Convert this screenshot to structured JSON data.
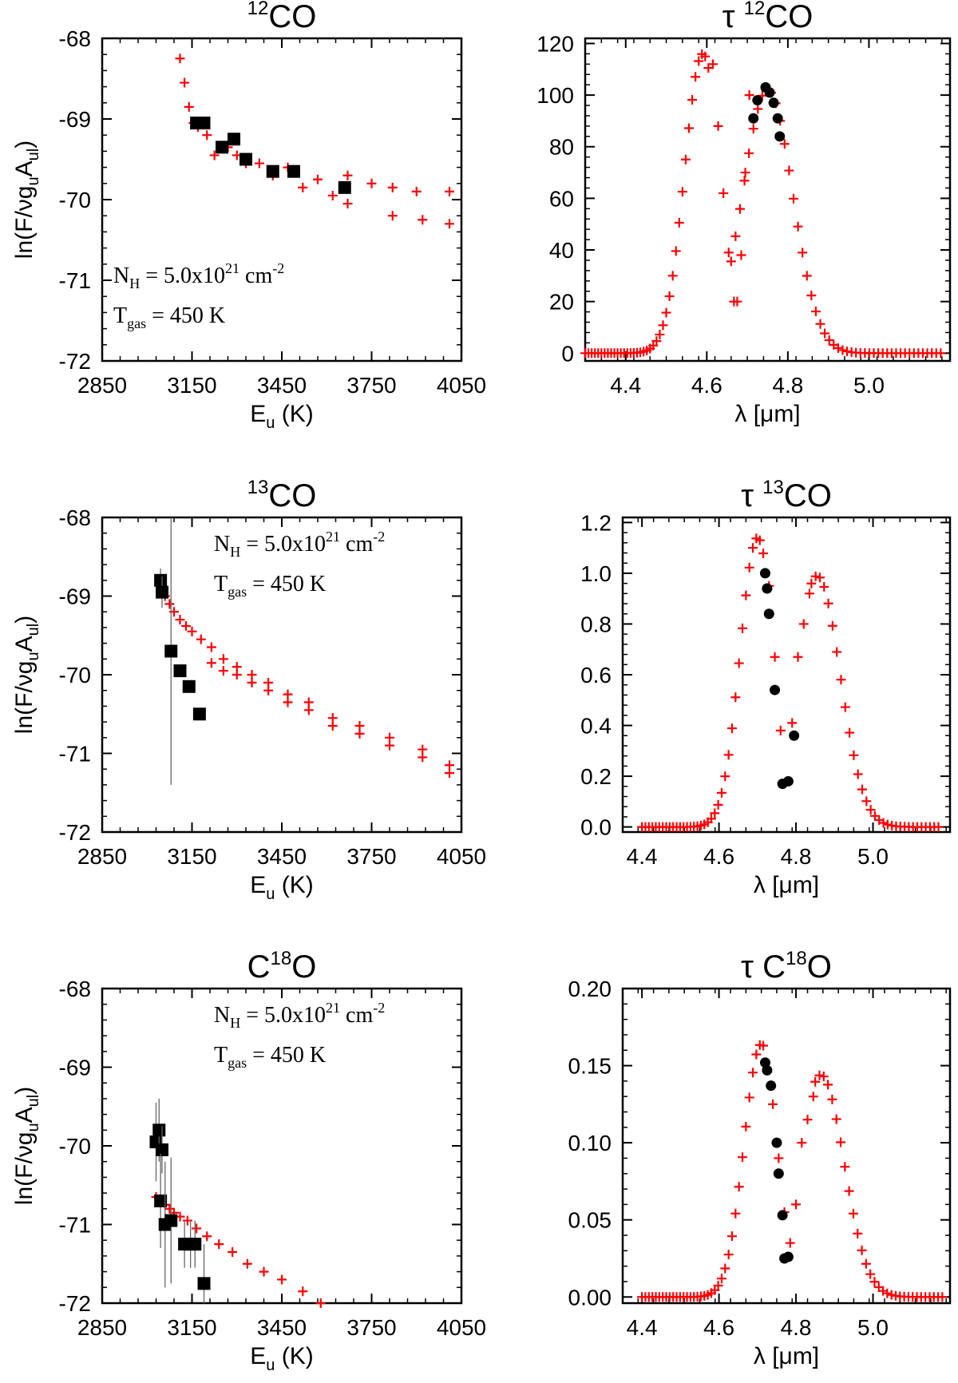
{
  "chart_data": [
    {
      "id": "rot_12co",
      "type": "scatter",
      "title": {
        "pre": "",
        "sup": "12",
        "post": "CO"
      },
      "xlabel": {
        "base": "E",
        "sub": "u",
        "post": " (K)"
      },
      "ylabel": {
        "pre": "ln(F/νg",
        "sub1": "u",
        "mid": "A",
        "sub2": "ul",
        "post": ")"
      },
      "xlim": [
        2850,
        4050
      ],
      "ylim": [
        -72,
        -68
      ],
      "xticks": [
        "2850",
        "3150",
        "3450",
        "3750",
        "4050"
      ],
      "yticks": [
        "-68",
        "-69",
        "-70",
        "-71",
        "-72"
      ],
      "annotation": {
        "n_label": "N",
        "n_sub": "H",
        "n_value": "= 5.0x10",
        "n_exp": "21",
        "n_unit": " cm",
        "n_unit_exp": "-2",
        "t_label": "T",
        "t_sub": "gas",
        "t_value": "= 450 K",
        "position": "lower-left"
      },
      "series": [
        {
          "name": "model",
          "marker": "plus",
          "color": "#ff0000",
          "x": [
            3110,
            3125,
            3140,
            3155,
            3170,
            3200,
            3225,
            3270,
            3300,
            3330,
            3375,
            3420,
            3470,
            3520,
            3570,
            3620,
            3670,
            3750,
            3820,
            3900,
            4010
          ],
          "y": [
            -68.25,
            -68.55,
            -68.85,
            -69.05,
            -69.1,
            -69.2,
            -69.45,
            -69.35,
            -69.45,
            -69.55,
            -69.55,
            -69.7,
            -69.6,
            -69.85,
            -69.75,
            -69.95,
            -69.7,
            -69.8,
            -69.85,
            -69.9,
            -69.9
          ]
        },
        {
          "name": "model-2",
          "marker": "plus",
          "color": "#ff0000",
          "x": [
            3670,
            3820,
            3920,
            4010
          ],
          "y": [
            -70.05,
            -70.2,
            -70.25,
            -70.3
          ]
        },
        {
          "name": "observed",
          "marker": "square",
          "color": "#000000",
          "x": [
            3165,
            3190,
            3250,
            3290,
            3330,
            3420,
            3490,
            3660
          ],
          "y": [
            -69.05,
            -69.05,
            -69.35,
            -69.25,
            -69.5,
            -69.65,
            -69.65,
            -69.85
          ],
          "err": [
            0,
            0,
            0,
            0,
            0,
            0,
            0,
            0
          ]
        }
      ]
    },
    {
      "id": "tau_12co",
      "type": "scatter",
      "title": {
        "pre": "τ ",
        "sup": "12",
        "post": "CO"
      },
      "xlabel": {
        "base": "λ [μm]",
        "sub": "",
        "post": ""
      },
      "ylabel": null,
      "xlim": [
        4.3,
        5.2
      ],
      "ylim": [
        -3,
        122
      ],
      "xticks": [
        "4.4",
        "4.6",
        "4.8",
        "5.0"
      ],
      "yticks": [
        "120",
        "100",
        "80",
        "60",
        "40",
        "20",
        "0"
      ],
      "series": [
        {
          "name": "model-P",
          "marker": "plus",
          "color": "#ff0000",
          "profile": {
            "center": 4.75,
            "peak": 102,
            "sigma": 0.062,
            "from": 4.66,
            "to": 5.18,
            "step": 0.011
          }
        },
        {
          "name": "model-R",
          "marker": "plus",
          "color": "#ff0000",
          "profile": {
            "center": 4.59,
            "peak": 116,
            "sigma": 0.045,
            "from": 4.3,
            "to": 4.605,
            "step": 0.008
          }
        },
        {
          "name": "model-R-tail",
          "marker": "plus",
          "color": "#ff0000",
          "x": [
            4.615,
            4.628,
            4.641,
            4.654,
            4.667
          ],
          "y": [
            112,
            88,
            62,
            39,
            20
          ]
        },
        {
          "name": "model-mid",
          "marker": "plus",
          "color": "#ff0000",
          "x": [
            4.675,
            4.685,
            4.695,
            4.705
          ],
          "y": [
            20,
            38,
            70,
            100
          ]
        },
        {
          "name": "observed",
          "marker": "circle",
          "color": "#000000",
          "x": [
            4.715,
            4.725,
            4.745,
            4.755,
            4.765,
            4.775,
            4.78
          ],
          "y": [
            91,
            98,
            103,
            101,
            97,
            91,
            84
          ]
        }
      ]
    },
    {
      "id": "rot_13co",
      "type": "scatter",
      "title": {
        "pre": "",
        "sup": "13",
        "post": "CO"
      },
      "xlabel": {
        "base": "E",
        "sub": "u",
        "post": " (K)"
      },
      "ylabel": {
        "pre": "ln(F/νg",
        "sub1": "u",
        "mid": "A",
        "sub2": "ul",
        "post": ")"
      },
      "xlim": [
        2850,
        4050
      ],
      "ylim": [
        -72,
        -68
      ],
      "xticks": [
        "2850",
        "3150",
        "3450",
        "3750",
        "4050"
      ],
      "yticks": [
        "-68",
        "-69",
        "-70",
        "-71",
        "-72"
      ],
      "annotation": {
        "n_label": "N",
        "n_sub": "H",
        "n_value": "= 5.0x10",
        "n_exp": "21",
        "n_unit": " cm",
        "n_unit_exp": "-2",
        "t_label": "T",
        "t_sub": "gas",
        "t_value": "= 450 K",
        "position": "upper-right"
      },
      "series": [
        {
          "name": "model",
          "marker": "plus",
          "color": "#ff0000",
          "x": [
            3040,
            3060,
            3075,
            3090,
            3110,
            3130,
            3150,
            3180,
            3215,
            3255,
            3300,
            3350,
            3405,
            3470,
            3540,
            3620,
            3710,
            3810,
            3920,
            4010
          ],
          "y": [
            -68.85,
            -69.0,
            -69.1,
            -69.2,
            -69.3,
            -69.38,
            -69.45,
            -69.55,
            -69.65,
            -69.8,
            -69.9,
            -70.0,
            -70.1,
            -70.25,
            -70.35,
            -70.55,
            -70.65,
            -70.8,
            -70.95,
            -71.15
          ]
        },
        {
          "name": "model-2",
          "marker": "plus",
          "color": "#ff0000",
          "x": [
            3215,
            3255,
            3300,
            3350,
            3405,
            3470,
            3540,
            3620,
            3710,
            3810,
            3920,
            4010
          ],
          "y": [
            -69.85,
            -69.95,
            -70.0,
            -70.1,
            -70.2,
            -70.35,
            -70.45,
            -70.65,
            -70.75,
            -70.9,
            -71.05,
            -71.25
          ]
        },
        {
          "name": "observed",
          "marker": "square",
          "color": "#000000",
          "x": [
            3045,
            3050,
            3080,
            3110,
            3140,
            3175
          ],
          "y": [
            -68.8,
            -68.95,
            -69.7,
            -69.95,
            -70.15,
            -70.5
          ],
          "err": [
            0.15,
            0.2,
            1.7,
            0,
            0,
            0
          ]
        }
      ]
    },
    {
      "id": "tau_13co",
      "type": "scatter",
      "title": {
        "pre": "τ ",
        "sup": "13",
        "post": "CO"
      },
      "xlabel": {
        "base": "λ [μm]",
        "sub": "",
        "post": ""
      },
      "ylabel": null,
      "xlim": [
        4.35,
        5.2
      ],
      "ylim": [
        -0.02,
        1.22
      ],
      "xticks": [
        "4.4",
        "4.6",
        "4.8",
        "5.0"
      ],
      "yticks": [
        "1.2",
        "1.0",
        "0.8",
        "0.6",
        "0.4",
        "0.2",
        "0.0"
      ],
      "series": [
        {
          "name": "model-R",
          "marker": "plus",
          "color": "#ff0000",
          "profile": {
            "center": 4.7,
            "peak": 1.14,
            "sigma": 0.045,
            "from": 4.4,
            "to": 4.715,
            "step": 0.009
          }
        },
        {
          "name": "model-P",
          "marker": "plus",
          "color": "#ff0000",
          "profile": {
            "center": 4.855,
            "peak": 0.99,
            "sigma": 0.06,
            "from": 4.84,
            "to": 5.18,
            "step": 0.011
          }
        },
        {
          "name": "model-mid",
          "marker": "plus",
          "color": "#ff0000",
          "x": [
            4.73,
            4.745,
            4.76,
            4.775,
            4.79,
            4.805,
            4.82,
            4.835
          ],
          "y": [
            0.95,
            0.67,
            0.38,
            0.18,
            0.41,
            0.67,
            0.8,
            0.92
          ]
        },
        {
          "name": "observed",
          "marker": "circle",
          "color": "#000000",
          "x": [
            4.72,
            4.725,
            4.73,
            4.745,
            4.765,
            4.78,
            4.795
          ],
          "y": [
            1.0,
            0.94,
            0.84,
            0.54,
            0.17,
            0.18,
            0.36
          ]
        }
      ]
    },
    {
      "id": "rot_c18o",
      "type": "scatter",
      "title": {
        "pre": "C",
        "sup": "18",
        "post": "O"
      },
      "xlabel": {
        "base": "E",
        "sub": "u",
        "post": " (K)"
      },
      "ylabel": {
        "pre": "ln(F/νg",
        "sub1": "u",
        "mid": "A",
        "sub2": "ul",
        "post": ")"
      },
      "xlim": [
        2850,
        4050
      ],
      "ylim": [
        -72,
        -68
      ],
      "xticks": [
        "2850",
        "3150",
        "3450",
        "3750",
        "4050"
      ],
      "yticks": [
        "-68",
        "-69",
        "-70",
        "-71",
        "-72"
      ],
      "annotation": {
        "n_label": "N",
        "n_sub": "H",
        "n_value": "= 5.0x10",
        "n_exp": "21",
        "n_unit": " cm",
        "n_unit_exp": "-2",
        "t_label": "T",
        "t_sub": "gas",
        "t_value": "= 450 K",
        "position": "upper-right"
      },
      "series": [
        {
          "name": "model",
          "marker": "plus",
          "color": "#ff0000",
          "x": [
            3030,
            3045,
            3060,
            3075,
            3090,
            3110,
            3135,
            3165,
            3200,
            3240,
            3285,
            3335,
            3390,
            3450,
            3520,
            3580
          ],
          "y": [
            -70.65,
            -70.7,
            -70.75,
            -70.8,
            -70.85,
            -70.9,
            -70.95,
            -71.05,
            -71.15,
            -71.25,
            -71.35,
            -71.5,
            -71.6,
            -71.7,
            -71.85,
            -72.0
          ]
        },
        {
          "name": "observed",
          "marker": "square",
          "color": "#000000",
          "x": [
            3030,
            3040,
            3050,
            3045,
            3060,
            3080,
            3125,
            3145,
            3160,
            3190
          ],
          "y": [
            -69.95,
            -69.8,
            -70.05,
            -70.7,
            -71.0,
            -70.95,
            -71.25,
            -71.25,
            -71.25,
            -71.75
          ],
          "err": [
            0.5,
            0.4,
            0.3,
            0.6,
            0.8,
            0.8,
            0.3,
            0.3,
            0.3,
            0.5
          ]
        }
      ]
    },
    {
      "id": "tau_c18o",
      "type": "scatter",
      "title": {
        "pre": "τ C",
        "sup": "18",
        "post": "O"
      },
      "xlabel": {
        "base": "λ [μm]",
        "sub": "",
        "post": ""
      },
      "ylabel": null,
      "xlim": [
        4.35,
        5.2
      ],
      "ylim": [
        -0.004,
        0.2
      ],
      "xticks": [
        "4.4",
        "4.6",
        "4.8",
        "5.0"
      ],
      "yticks": [
        "0.20",
        "0.15",
        "0.10",
        "0.05",
        "0.00"
      ],
      "series": [
        {
          "name": "model-R",
          "marker": "plus",
          "color": "#ff0000",
          "profile": {
            "center": 4.71,
            "peak": 0.164,
            "sigma": 0.045,
            "from": 4.4,
            "to": 4.72,
            "step": 0.009
          }
        },
        {
          "name": "model-P",
          "marker": "plus",
          "color": "#ff0000",
          "profile": {
            "center": 4.865,
            "peak": 0.144,
            "sigma": 0.06,
            "from": 4.85,
            "to": 5.18,
            "step": 0.011
          }
        },
        {
          "name": "model-mid",
          "marker": "plus",
          "color": "#ff0000",
          "x": [
            4.74,
            4.755,
            4.77,
            4.785,
            4.8,
            4.815,
            4.83,
            4.845
          ],
          "y": [
            0.125,
            0.09,
            0.055,
            0.035,
            0.06,
            0.1,
            0.115,
            0.13
          ]
        },
        {
          "name": "observed",
          "marker": "circle",
          "color": "#000000",
          "x": [
            4.72,
            4.725,
            4.735,
            4.75,
            4.755,
            4.765,
            4.77,
            4.78
          ],
          "y": [
            0.152,
            0.147,
            0.137,
            0.1,
            0.08,
            0.053,
            0.025,
            0.026
          ]
        }
      ]
    }
  ]
}
